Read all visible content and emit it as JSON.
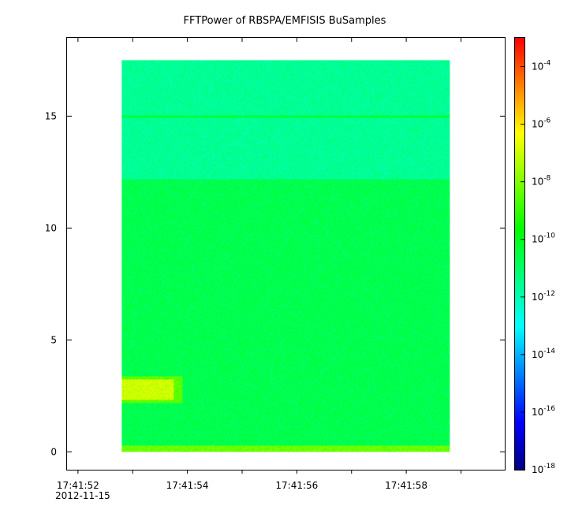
{
  "chart_data": {
    "type": "heatmap",
    "title": "FFTPower of RBSPA/EMFISIS  BuSamples",
    "xlabel": "",
    "ylabel": "",
    "x_tick_labels": [
      "17:41:52",
      "17:41:54",
      "17:41:56",
      "17:41:58"
    ],
    "x_tick_seconds": [
      52,
      54,
      56,
      58
    ],
    "x_first_label_date": "2012-11-15",
    "xlim_seconds": [
      51.8,
      59.8
    ],
    "data_x_range_seconds": [
      52.8,
      58.8
    ],
    "y_ticks": [
      0,
      5,
      10,
      15
    ],
    "ylim": [
      -0.8,
      18.5
    ],
    "data_y_range": [
      0,
      17.5
    ],
    "colorbar": {
      "scale": "log",
      "range": [
        1e-18,
        0.001
      ],
      "tick_bases": [
        "10",
        "10",
        "10",
        "10",
        "10",
        "10",
        "10",
        "10"
      ],
      "tick_exponents": [
        "-4",
        "-6",
        "-8",
        "-10",
        "-12",
        "-14",
        "-16",
        "-18"
      ],
      "tick_log_values": [
        -4,
        -6,
        -8,
        -10,
        -12,
        -14,
        -16,
        -18
      ],
      "colormap": [
        "#00007f",
        "#0000ff",
        "#0080ff",
        "#00ffff",
        "#00ff80",
        "#00ff00",
        "#80ff00",
        "#ffff00",
        "#ff8000",
        "#ff0000"
      ]
    },
    "features": [
      {
        "description_value": "background power above 12.2",
        "log_power": -11.6
      },
      {
        "description_value": "background power below 12.2",
        "log_power": -10.7
      },
      {
        "description_value": "narrow band near 15",
        "y": 15,
        "log_power": -10.4
      },
      {
        "description_value": "band near 0.2",
        "y": 0.2,
        "log_power": -8.3
      },
      {
        "description_value": "burst at 52.8 to 53.9 s, 2.2 to 3.4",
        "log_power": -7.0
      }
    ]
  }
}
